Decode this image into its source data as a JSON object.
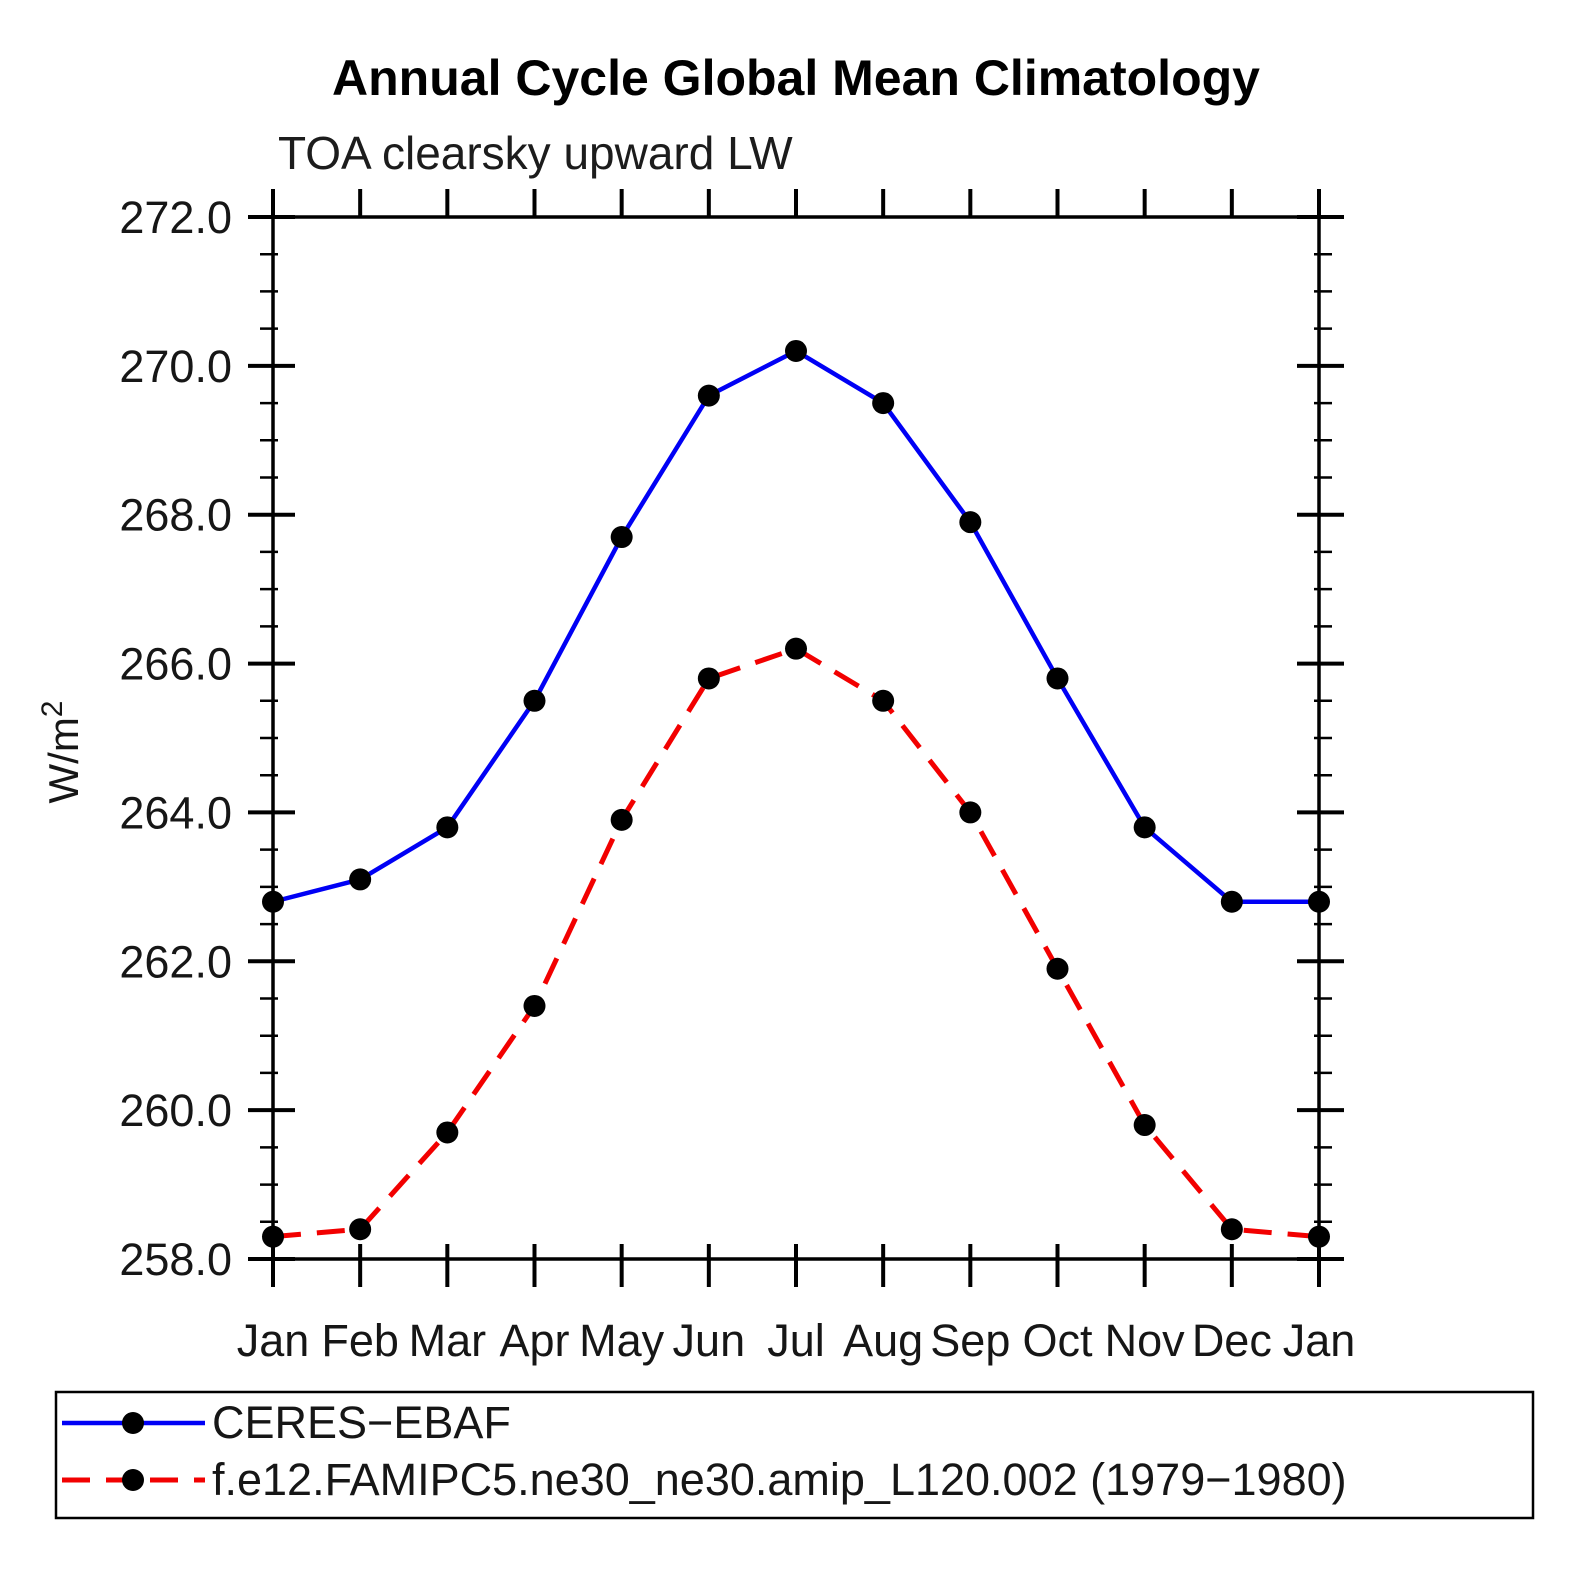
{
  "page": {
    "background": "#ffffff"
  },
  "chart_data": {
    "type": "line",
    "title": "Annual Cycle Global Mean Climatology",
    "subtitle": "TOA clearsky upward LW",
    "ylabel_main": "W/m",
    "ylabel_sup": "2",
    "categories": [
      "Jan",
      "Feb",
      "Mar",
      "Apr",
      "May",
      "Jun",
      "Jul",
      "Aug",
      "Sep",
      "Oct",
      "Nov",
      "Dec",
      "Jan"
    ],
    "ylim": [
      258.0,
      272.0
    ],
    "ytick_major_step": 2.0,
    "ytick_minor_step": 0.5,
    "ytick_labels": [
      "258.0",
      "260.0",
      "262.0",
      "264.0",
      "266.0",
      "268.0",
      "270.0",
      "272.0"
    ],
    "grid": false,
    "legend_position": "bottom-left",
    "axis_color": "#000000",
    "marker_color": "#000000",
    "series": [
      {
        "name": "CERES−EBAF",
        "color": "#0000f5",
        "style": "solid",
        "marker": "circle",
        "values": [
          262.8,
          263.1,
          263.8,
          265.5,
          267.7,
          269.6,
          270.2,
          269.5,
          267.9,
          265.8,
          263.8,
          262.8,
          262.8
        ]
      },
      {
        "name": "f.e12.FAMIPC5.ne30_ne30.amip_L120.002 (1979−1980)",
        "color": "#f20000",
        "style": "dashed",
        "marker": "circle",
        "values": [
          258.3,
          258.4,
          259.7,
          261.4,
          263.9,
          265.8,
          266.2,
          265.5,
          264.0,
          261.9,
          259.8,
          258.4,
          258.3
        ]
      }
    ]
  }
}
